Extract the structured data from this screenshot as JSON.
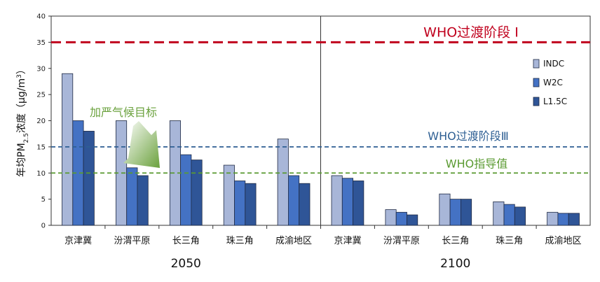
{
  "chart_data": {
    "type": "bar",
    "ylabel": {
      "prefix": "年均PM",
      "sub": "2.5",
      "mid": "浓度（μg/m",
      "sup": "3",
      "suffix": "）"
    },
    "ylim": [
      0,
      40
    ],
    "yticks": [
      "0",
      "5",
      "10",
      "15",
      "20",
      "25",
      "30",
      "35",
      "40"
    ],
    "groups": [
      {
        "label": "2050",
        "categories": [
          "京津冀",
          "汾渭平原",
          "长三角",
          "珠三角",
          "成渝地区"
        ]
      },
      {
        "label": "2100",
        "categories": [
          "京津冀",
          "汾渭平原",
          "长三角",
          "珠三角",
          "成渝地区"
        ]
      }
    ],
    "series": [
      {
        "name": "INDC",
        "color": "#a8b6d8",
        "values": [
          29,
          20,
          20,
          11.5,
          16.5,
          9.5,
          3,
          6,
          4.5,
          2.5
        ]
      },
      {
        "name": "W2C",
        "color": "#4472c4",
        "values": [
          20,
          11,
          13.5,
          8.5,
          9.5,
          9,
          2.5,
          5,
          4,
          2.3
        ]
      },
      {
        "name": "L1.5C",
        "color": "#2f5597",
        "values": [
          18,
          9.5,
          12.5,
          8,
          8,
          8.5,
          2,
          5,
          3.5,
          2.3
        ]
      }
    ],
    "reference_lines": [
      {
        "label": "WHO过渡阶段 Ⅰ",
        "value": 35,
        "color": "#c0001d"
      },
      {
        "label": "WHO过渡阶段Ⅲ",
        "value": 15,
        "color": "#2e5f93"
      },
      {
        "label": "WHO指导值",
        "value": 10,
        "color": "#5a9a31"
      }
    ],
    "annotation": {
      "text": "加严气候目标",
      "color": "#6aa13c"
    },
    "legend_position": "right"
  }
}
